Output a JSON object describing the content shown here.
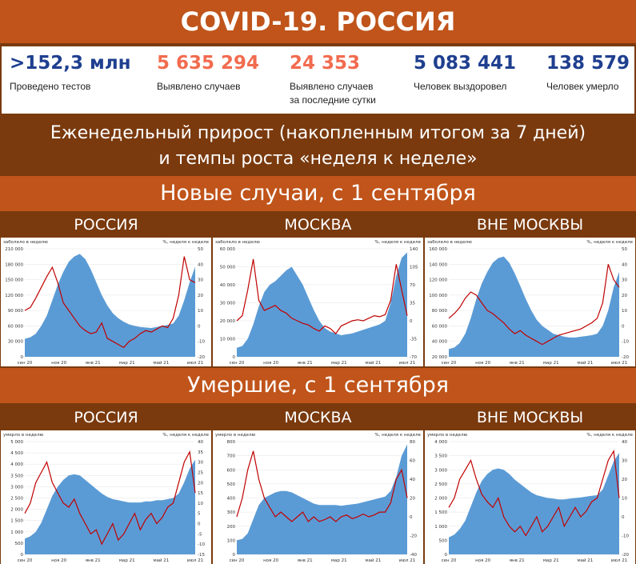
{
  "title": "COVID-19. РОССИЯ",
  "stats": [
    {
      "value": ">152,3 млн",
      "label": "Проведено тестов",
      "color": "#1f3f8f"
    },
    {
      "value": "5 635 294",
      "label": "Выявлено случаев",
      "color": "#f26b4f"
    },
    {
      "value": "24 353",
      "label": "Выявлено случаев\nза последние сутки",
      "color": "#f26b4f"
    },
    {
      "value": "5 083 441",
      "label": "Человек выздоровел",
      "color": "#1f3f8f"
    },
    {
      "value": "138 579",
      "label": "Человек умерло",
      "color": "#1f3f8f"
    }
  ],
  "weekly_line1": "Еженедельный прирост (накопленным итогом за 7 дней)",
  "weekly_line2": "и темпы роста «неделя к неделе»",
  "section_cases": "Новые случаи, с 1 сентября",
  "section_deaths": "Умершие, с 1 сентября",
  "colors": {
    "bar": "#5b9bd5",
    "line": "#c00000"
  },
  "chart_data": [
    {
      "type": "area",
      "panel": "cases",
      "region": "РОССИЯ",
      "ylabel": "заболело в неделю",
      "y2label": "%, неделя к неделе",
      "yticks": [
        "210 000",
        "180 000",
        "150 000",
        "120 000",
        "90 000",
        "60 000",
        "30 000",
        "0"
      ],
      "y2ticks": [
        "50",
        "40",
        "30",
        "20",
        "10",
        "0",
        "-10",
        "-20"
      ],
      "ylim": [
        0,
        210000
      ],
      "y2lim": [
        -20,
        50
      ],
      "xticks": [
        "сен 20",
        "ноя 20",
        "янв 21",
        "мар 21",
        "май 21",
        "июл 21"
      ],
      "series": [
        {
          "values": [
            35000,
            38000,
            45000,
            60000,
            80000,
            110000,
            140000,
            165000,
            185000,
            195000,
            200000,
            190000,
            170000,
            145000,
            120000,
            100000,
            85000,
            75000,
            68000,
            63000,
            60000,
            58000,
            57000,
            56000,
            58000,
            60000,
            62000,
            65000,
            80000,
            110000,
            145000,
            175000
          ]
        },
        {
          "values": [
            10,
            12,
            18,
            25,
            32,
            38,
            28,
            15,
            10,
            5,
            0,
            -3,
            -5,
            -4,
            2,
            -8,
            -10,
            -12,
            -14,
            -10,
            -8,
            -5,
            -3,
            -4,
            -2,
            0,
            -1,
            5,
            20,
            45,
            30,
            28
          ]
        }
      ]
    },
    {
      "type": "area",
      "panel": "cases",
      "region": "МОСКВА",
      "ylabel": "заболело в неделю",
      "y2label": "%, неделя к неделе",
      "yticks": [
        "60 000",
        "50 000",
        "40 000",
        "30 000",
        "20 000",
        "10 000",
        "0"
      ],
      "y2ticks": [
        "140",
        "105",
        "70",
        "35",
        "0",
        "-35",
        "-70"
      ],
      "ylim": [
        0,
        60000
      ],
      "y2lim": [
        -70,
        140
      ],
      "xticks": [
        "сен 20",
        "ноя 20",
        "янв 21",
        "мар 21",
        "май 21",
        "июл 21"
      ],
      "series": [
        {
          "values": [
            5000,
            6000,
            10000,
            18000,
            28000,
            36000,
            40000,
            42000,
            45000,
            48000,
            50000,
            45000,
            40000,
            33000,
            26000,
            20000,
            16000,
            14000,
            13000,
            12000,
            12500,
            13000,
            14000,
            15000,
            16000,
            17000,
            18000,
            20000,
            30000,
            45000,
            55000,
            58000
          ]
        },
        {
          "values": [
            0,
            10,
            60,
            120,
            40,
            20,
            25,
            30,
            20,
            15,
            5,
            0,
            -5,
            -8,
            -15,
            -20,
            -10,
            -15,
            -25,
            -10,
            -5,
            0,
            2,
            0,
            5,
            10,
            8,
            12,
            40,
            110,
            60,
            10
          ]
        }
      ]
    },
    {
      "type": "area",
      "panel": "cases",
      "region": "ВНЕ МОСКВЫ",
      "ylabel": "заболело в неделю",
      "y2label": "%, неделя к неделе",
      "yticks": [
        "160 000",
        "140 000",
        "120 000",
        "100 000",
        "80 000",
        "60 000",
        "40 000",
        "20 000"
      ],
      "y2ticks": [
        "50",
        "40",
        "30",
        "20",
        "10",
        "0",
        "-10",
        "-20"
      ],
      "ylim": [
        20000,
        160000
      ],
      "y2lim": [
        -20,
        50
      ],
      "xticks": [
        "сен 20",
        "ноя 20",
        "янв 21",
        "мар 21",
        "май 21",
        "июл 21"
      ],
      "series": [
        {
          "values": [
            30000,
            32000,
            38000,
            50000,
            70000,
            95000,
            115000,
            130000,
            142000,
            148000,
            150000,
            142000,
            128000,
            112000,
            95000,
            80000,
            68000,
            60000,
            55000,
            50000,
            48000,
            46000,
            45000,
            45000,
            46000,
            47000,
            48000,
            50000,
            60000,
            80000,
            110000,
            130000
          ]
        },
        {
          "values": [
            5,
            8,
            12,
            18,
            22,
            20,
            15,
            10,
            8,
            5,
            2,
            -2,
            -5,
            -3,
            -6,
            -8,
            -10,
            -12,
            -10,
            -8,
            -6,
            -5,
            -4,
            -3,
            -2,
            0,
            2,
            5,
            15,
            40,
            30,
            25
          ]
        }
      ]
    },
    {
      "type": "area",
      "panel": "deaths",
      "region": "РОССИЯ",
      "ylabel": "умерло в неделю",
      "y2label": "%, неделя к неделе",
      "yticks": [
        "5 000",
        "4 500",
        "4 000",
        "3 500",
        "3 000",
        "2 500",
        "2 000",
        "1 500",
        "1 000",
        "500",
        "0"
      ],
      "y2ticks": [
        "40",
        "35",
        "30",
        "25",
        "20",
        "15",
        "10",
        "5",
        "0",
        "-5",
        "-10",
        "-15"
      ],
      "ylim": [
        0,
        5000
      ],
      "y2lim": [
        -15,
        40
      ],
      "xticks": [
        "сен 20",
        "ноя 20",
        "янв 21",
        "мар 21",
        "май 21",
        "июл 21"
      ],
      "series": [
        {
          "values": [
            700,
            800,
            1000,
            1400,
            2000,
            2600,
            3000,
            3300,
            3500,
            3550,
            3500,
            3300,
            3100,
            2900,
            2700,
            2550,
            2450,
            2400,
            2350,
            2300,
            2300,
            2300,
            2350,
            2350,
            2400,
            2400,
            2450,
            2500,
            2700,
            3200,
            3800,
            4200
          ]
        },
        {
          "values": [
            5,
            10,
            20,
            25,
            30,
            20,
            15,
            10,
            8,
            12,
            5,
            0,
            -5,
            -3,
            -10,
            -5,
            0,
            -8,
            -5,
            0,
            5,
            -3,
            2,
            5,
            0,
            3,
            8,
            10,
            20,
            30,
            35,
            15
          ]
        }
      ]
    },
    {
      "type": "area",
      "panel": "deaths",
      "region": "МОСКВА",
      "ylabel": "умерло в неделю",
      "y2label": "%, неделя к неделе",
      "yticks": [
        "800",
        "700",
        "600",
        "500",
        "400",
        "300",
        "200",
        "100",
        "0"
      ],
      "y2ticks": [
        "80",
        "60",
        "40",
        "20",
        "0",
        "-20",
        "-40"
      ],
      "ylim": [
        0,
        800
      ],
      "y2lim": [
        -40,
        80
      ],
      "xticks": [
        "сен 20",
        "ноя 20",
        "янв 21",
        "мар 21",
        "май 21",
        "июл 21"
      ],
      "series": [
        {
          "values": [
            100,
            110,
            150,
            250,
            350,
            400,
            420,
            440,
            450,
            450,
            440,
            420,
            400,
            380,
            360,
            350,
            350,
            350,
            350,
            345,
            350,
            355,
            360,
            370,
            380,
            390,
            400,
            410,
            450,
            550,
            700,
            780
          ]
        },
        {
          "values": [
            0,
            20,
            50,
            70,
            40,
            20,
            10,
            0,
            5,
            0,
            -5,
            0,
            5,
            -5,
            0,
            -5,
            -3,
            0,
            -5,
            0,
            2,
            -2,
            0,
            3,
            0,
            2,
            5,
            5,
            15,
            40,
            50,
            20
          ]
        }
      ]
    },
    {
      "type": "area",
      "panel": "deaths",
      "region": "ВНЕ МОСКВЫ",
      "ylabel": "умерло в неделю",
      "y2label": "%, неделя к неделе",
      "yticks": [
        "4 000",
        "3 500",
        "3 000",
        "2 500",
        "2 000",
        "1 500",
        "1 000",
        "500",
        "0"
      ],
      "y2ticks": [
        "40",
        "30",
        "20",
        "10",
        "0",
        "-10",
        "-20"
      ],
      "ylim": [
        0,
        4000
      ],
      "y2lim": [
        -20,
        40
      ],
      "xticks": [
        "сен 20",
        "ноя 20",
        "янв 21",
        "мар 21",
        "май 21",
        "июл 21"
      ],
      "series": [
        {
          "values": [
            600,
            700,
            900,
            1200,
            1700,
            2200,
            2600,
            2850,
            3000,
            3050,
            3000,
            2850,
            2650,
            2500,
            2350,
            2200,
            2100,
            2050,
            2000,
            1980,
            1950,
            1950,
            1980,
            2000,
            2020,
            2050,
            2080,
            2100,
            2300,
            2800,
            3300,
            3600
          ]
        },
        {
          "values": [
            5,
            10,
            20,
            25,
            30,
            20,
            12,
            8,
            5,
            10,
            0,
            -5,
            -8,
            -5,
            -10,
            -5,
            0,
            -8,
            -5,
            0,
            5,
            -5,
            0,
            5,
            0,
            3,
            8,
            10,
            20,
            30,
            35,
            10
          ]
        }
      ]
    }
  ]
}
